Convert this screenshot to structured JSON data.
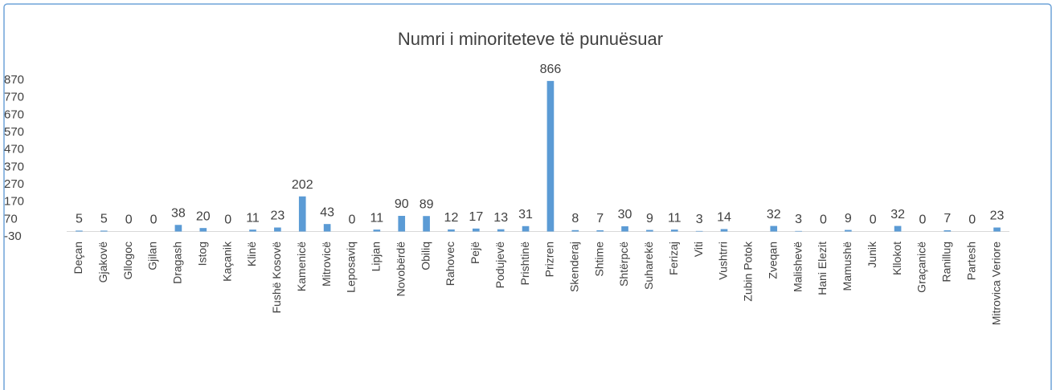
{
  "chart_data": {
    "type": "bar",
    "title": "Numri  i minoriteteve të punuësuar",
    "categories": [
      "Deçan",
      "Gjakovë",
      "Gllogoc",
      "Gjilan",
      "Dragash",
      "Istog",
      "Kaçanik",
      "Klinë",
      "Fushë Kosovë",
      "Kamenicë",
      "Mitrovicë",
      "Leposaviq",
      "Lipjan",
      "Novobërdë",
      "Obiliq",
      "Rahovec",
      "Pejë",
      "Podujevë",
      "Prishtinë",
      "Prizren",
      "Skenderaj",
      "Shtime",
      "Shtërpcë",
      "Suharekë",
      "Ferizaj",
      "Viti",
      "Vushtrri",
      "Zubin Potok",
      "Zveqan",
      "Malishevë",
      "Hani Elezit",
      "Mamushë",
      "Junik",
      "Kllokot",
      "Graçanicë",
      "Ranillug",
      "Partesh",
      "Mitrovica Veriore"
    ],
    "values": [
      5,
      5,
      0,
      0,
      38,
      20,
      0,
      11,
      23,
      202,
      43,
      0,
      11,
      90,
      89,
      12,
      17,
      13,
      31,
      866,
      8,
      7,
      30,
      9,
      11,
      3,
      14,
      null,
      32,
      3,
      0,
      9,
      0,
      32,
      0,
      7,
      0,
      23
    ],
    "color": "#5b9bd5",
    "ylim": [
      -30,
      870
    ],
    "yticks": [
      -30,
      70,
      170,
      270,
      370,
      470,
      570,
      670,
      770,
      870
    ],
    "grid": false
  }
}
